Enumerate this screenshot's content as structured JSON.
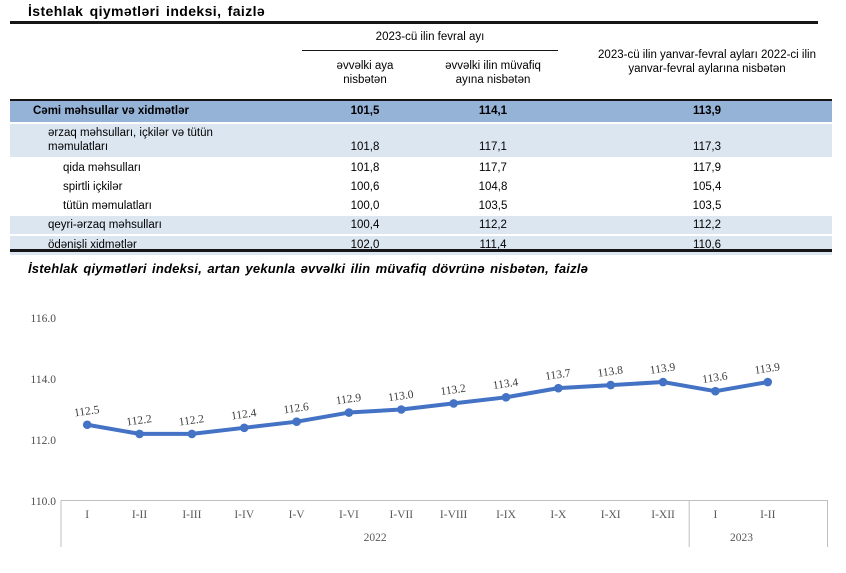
{
  "page": {
    "table_title": "İstehlak qiymətləri indeksi, faizlə",
    "chart_title": "İstehlak qiymətləri indeksi, artan yekunla əvvəlki ilin müvafiq dövrünə nisbətən, faizlə"
  },
  "table": {
    "col_groups": {
      "february": "2023-cü ilin fevral ayı",
      "jan_feb": "2023-cü ilin yanvar-fevral ayları 2022-ci ilin yanvar-fevral aylarına nisbətən"
    },
    "sub_headers": [
      "əvvəlki aya nisbətən",
      "əvvəlki ilin müvafiq ayına nisbətən"
    ],
    "rows": [
      {
        "label": "Cəmi məhsullar və xidmətlər",
        "level": 0,
        "style": "total",
        "values": [
          "101,5",
          "114,1",
          "113,9"
        ]
      },
      {
        "label": "ərzaq məhsulları, içkilər və tütün məmulatları",
        "level": 1,
        "style": "group",
        "values": [
          "101,8",
          "117,1",
          "117,3"
        ]
      },
      {
        "label": "qida məhsulları",
        "level": 2,
        "style": "plain",
        "values": [
          "101,8",
          "117,7",
          "117,9"
        ]
      },
      {
        "label": "spirtli içkilər",
        "level": 2,
        "style": "plain",
        "values": [
          "100,6",
          "104,8",
          "105,4"
        ]
      },
      {
        "label": "tütün məmulatları",
        "level": 2,
        "style": "plain",
        "values": [
          "100,0",
          "103,5",
          "103,5"
        ]
      },
      {
        "label": "qeyri-ərzaq məhsulları",
        "level": 1,
        "style": "group",
        "values": [
          "100,4",
          "112,2",
          "112,2"
        ]
      },
      {
        "label": "ödənişli xidmətlər",
        "level": 1,
        "style": "group",
        "values": [
          "102,0",
          "111,4",
          "110,6"
        ]
      }
    ]
  },
  "chart_data": {
    "type": "line",
    "title": "İstehlak qiymətləri indeksi, artan yekunla əvvəlki ilin müvafiq dövrünə nisbətən, faizlə",
    "categories": [
      "I",
      "I-II",
      "I-III",
      "I-IV",
      "I-V",
      "I-VI",
      "I-VII",
      "I-VIII",
      "I-IX",
      "I-X",
      "I-XI",
      "I-XII",
      "I",
      "I-II"
    ],
    "values": [
      112.5,
      112.2,
      112.2,
      112.4,
      112.6,
      112.9,
      113.0,
      113.2,
      113.4,
      113.7,
      113.8,
      113.9,
      113.6,
      113.9
    ],
    "year_groups": [
      {
        "label": "2022",
        "span": 12
      },
      {
        "label": "2023",
        "span": 2
      }
    ],
    "yticks": [
      110.0,
      112.0,
      114.0,
      116.0
    ],
    "ylim": [
      110,
      116
    ],
    "xlabel": "",
    "ylabel": "",
    "grid": false,
    "legend": false,
    "line_color": "#4472C4"
  },
  "colors": {
    "total_row_bg": "#95B3D7",
    "group_row_bg": "#DCE6F1",
    "rule": "#161616",
    "axis_line": "#BFBFBF",
    "axis_text": "#595959",
    "data_label_text": "#3a3a3a"
  }
}
